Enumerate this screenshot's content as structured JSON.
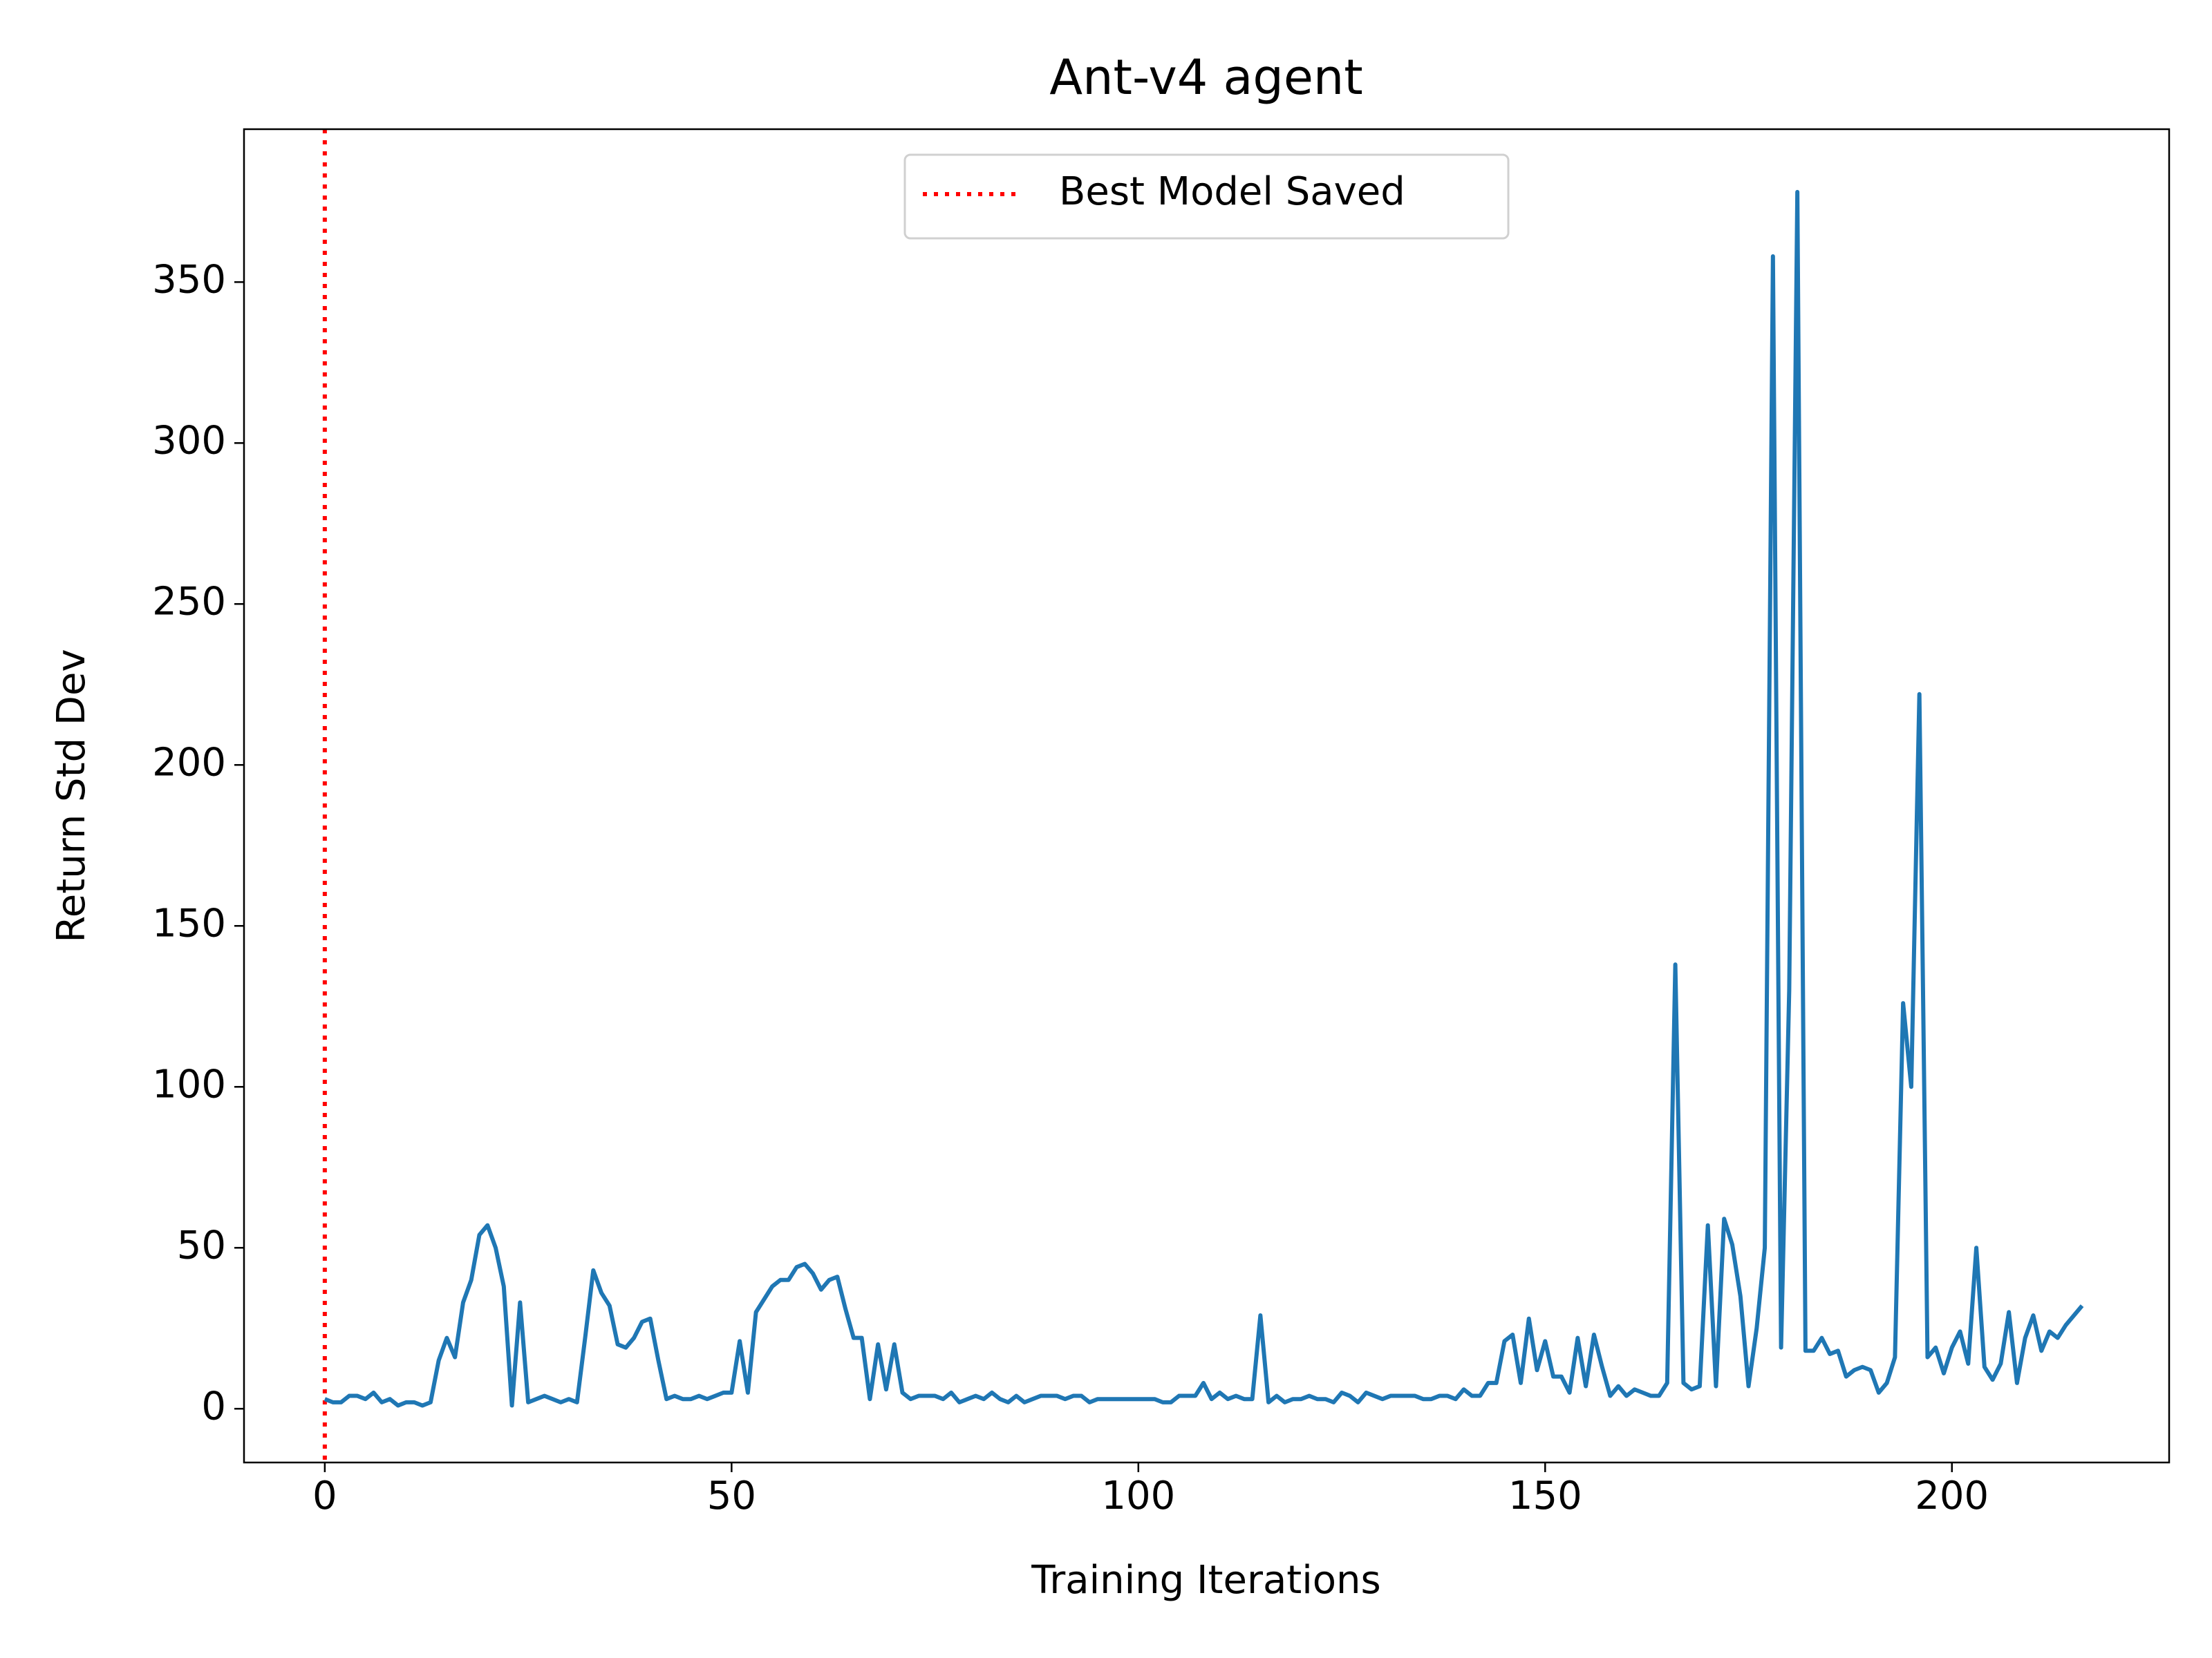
{
  "chart_data": {
    "type": "line",
    "title": "Ant-v4 agent",
    "x_label": "Training Iterations",
    "y_label": "Return Std Dev",
    "x": [
      0,
      1,
      2,
      3,
      4,
      5,
      6,
      7,
      8,
      9,
      10,
      11,
      12,
      13,
      14,
      15,
      16,
      17,
      18,
      19,
      20,
      21,
      22,
      23,
      24,
      25,
      26,
      27,
      28,
      29,
      30,
      31,
      32,
      33,
      34,
      35,
      36,
      37,
      38,
      39,
      40,
      41,
      42,
      43,
      44,
      45,
      46,
      47,
      48,
      49,
      50,
      51,
      52,
      53,
      54,
      55,
      56,
      57,
      58,
      59,
      60,
      61,
      62,
      63,
      64,
      65,
      66,
      67,
      68,
      69,
      70,
      71,
      72,
      73,
      74,
      75,
      76,
      77,
      78,
      79,
      80,
      81,
      82,
      83,
      84,
      85,
      86,
      87,
      88,
      89,
      90,
      91,
      92,
      93,
      94,
      95,
      96,
      97,
      98,
      99,
      100,
      101,
      102,
      103,
      104,
      105,
      106,
      107,
      108,
      109,
      110,
      111,
      112,
      113,
      114,
      115,
      116,
      117,
      118,
      119,
      120,
      121,
      122,
      123,
      124,
      125,
      126,
      127,
      128,
      129,
      130,
      131,
      132,
      133,
      134,
      135,
      136,
      137,
      138,
      139,
      140,
      141,
      142,
      143,
      144,
      145,
      146,
      147,
      148,
      149,
      150,
      151,
      152,
      153,
      154,
      155,
      156,
      157,
      158,
      159,
      160,
      161,
      162,
      163,
      164,
      165,
      166,
      167,
      168,
      169,
      170,
      171,
      172,
      173,
      174,
      175,
      176,
      177,
      178,
      179,
      180,
      181,
      182,
      183,
      184,
      185,
      186,
      187,
      188,
      189,
      190,
      191,
      192,
      193,
      194,
      195,
      196,
      197,
      198,
      199,
      200,
      201,
      202,
      203,
      204,
      205,
      206,
      207,
      208,
      209,
      210,
      211,
      212,
      213,
      214,
      215,
      216
    ],
    "series": [
      {
        "color": "#1f77b4",
        "values": [
          3,
          2,
          2,
          4,
          4,
          3,
          5,
          2,
          3,
          1,
          2,
          2,
          1,
          2,
          15,
          22,
          16,
          33,
          40,
          54,
          57,
          50,
          38,
          1,
          33,
          2,
          3,
          4,
          3,
          2,
          3,
          2,
          22,
          43,
          36,
          32,
          20,
          19,
          22,
          27,
          28,
          15,
          3,
          4,
          3,
          3,
          4,
          3,
          4,
          5,
          5,
          21,
          5,
          30,
          34,
          38,
          40,
          40,
          44,
          45,
          42,
          37,
          40,
          41,
          31,
          22,
          22,
          3,
          20,
          6,
          20,
          5,
          3,
          4,
          4,
          4,
          3,
          5,
          2,
          3,
          4,
          3,
          5,
          3,
          2,
          4,
          2,
          3,
          4,
          4,
          4,
          3,
          4,
          4,
          2,
          3,
          3,
          3,
          3,
          3,
          3,
          3,
          3,
          2,
          2,
          4,
          4,
          4,
          8,
          3,
          5,
          3,
          4,
          3,
          3,
          29,
          2,
          4,
          2,
          3,
          3,
          4,
          3,
          3,
          2,
          5,
          4,
          2,
          5,
          4,
          3,
          4,
          4,
          4,
          4,
          3,
          3,
          4,
          4,
          3,
          6,
          4,
          4,
          8,
          8,
          21,
          23,
          8,
          28,
          12,
          21,
          10,
          10,
          5,
          22,
          7,
          23,
          13,
          4,
          7,
          4,
          6,
          5,
          4,
          4,
          8,
          138,
          8,
          6,
          7,
          57,
          7,
          59,
          51,
          35,
          7,
          25,
          50,
          358,
          19,
          130,
          378,
          18,
          18,
          22,
          17,
          18,
          10,
          12,
          13,
          12,
          5,
          8,
          16,
          126,
          100,
          222,
          16,
          19,
          11,
          19,
          24,
          14,
          50,
          13,
          9,
          14,
          30,
          8,
          22,
          29,
          18,
          24,
          22,
          26,
          29,
          32
        ]
      }
    ],
    "vlines": [
      {
        "x": 0,
        "name": "Best Model Saved",
        "color": "#ff0000",
        "style": "dotted"
      }
    ],
    "xlim": [
      -9.93,
      226.7
    ],
    "ylim": [
      -16.7,
      397.5
    ],
    "xticks": [
      0,
      50,
      100,
      150,
      200
    ],
    "yticks": [
      0,
      50,
      100,
      150,
      200,
      250,
      300,
      350
    ],
    "grid": false,
    "legend": "upper center"
  }
}
